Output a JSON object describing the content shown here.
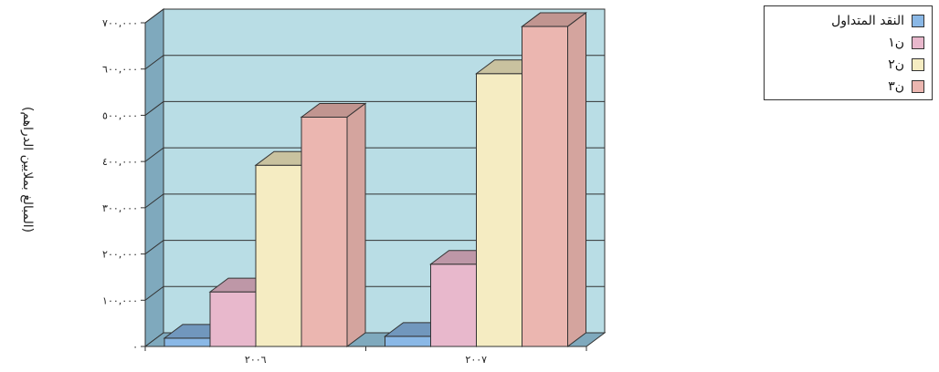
{
  "chart_data": {
    "type": "bar",
    "title": "",
    "xlabel": "",
    "ylabel": "(المبالغ بملايين الدراهم)",
    "categories": [
      "٢٠٠٦",
      "٢٠٠٧"
    ],
    "ylim": [
      0,
      700000
    ],
    "y_ticks": [
      0,
      100000,
      200000,
      300000,
      400000,
      500000,
      600000,
      700000
    ],
    "y_tick_labels": [
      "٠",
      "١٠٠,٠٠٠",
      "٢٠٠,٠٠٠",
      "٣٠٠,٠٠٠",
      "٤٠٠,٠٠٠",
      "٥٠٠,٠٠٠",
      "٦٠٠,٠٠٠",
      "٧٠٠,٠٠٠"
    ],
    "grid": true,
    "three_d": true,
    "legend_position": "top-right",
    "series": [
      {
        "name": "النقد المتداول",
        "values": [
          18000,
          22000
        ],
        "color": "#8ab8e6"
      },
      {
        "name": "ن١",
        "values": [
          118000,
          178000
        ],
        "color": "#e8b8cc"
      },
      {
        "name": "ن٢",
        "values": [
          392000,
          590000
        ],
        "color": "#f5ecc2"
      },
      {
        "name": "ن٣",
        "values": [
          496000,
          692000
        ],
        "color": "#ebb6b0"
      }
    ]
  },
  "colors": {
    "plot_background": "#b9dde5",
    "side_wall": "#7fa9bd",
    "floor": "#7fa9bd",
    "gridline": "#333333"
  }
}
